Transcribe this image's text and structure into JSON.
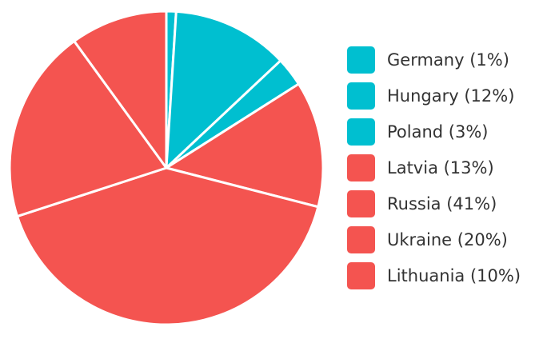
{
  "chart_data": {
    "type": "pie",
    "categories": [
      "Germany (1%)",
      "Hungary (12%)",
      "Poland (3%)",
      "Latvia (13%)",
      "Russia (41%)",
      "Ukraine (20%)",
      "Lithuania (10%)"
    ],
    "values": [
      1,
      12,
      3,
      13,
      41,
      20,
      10
    ],
    "colors": [
      "#00bfd0",
      "#00bfd0",
      "#00bfd0",
      "#f45450",
      "#f45450",
      "#f45450",
      "#f45450"
    ],
    "legend": "right"
  }
}
